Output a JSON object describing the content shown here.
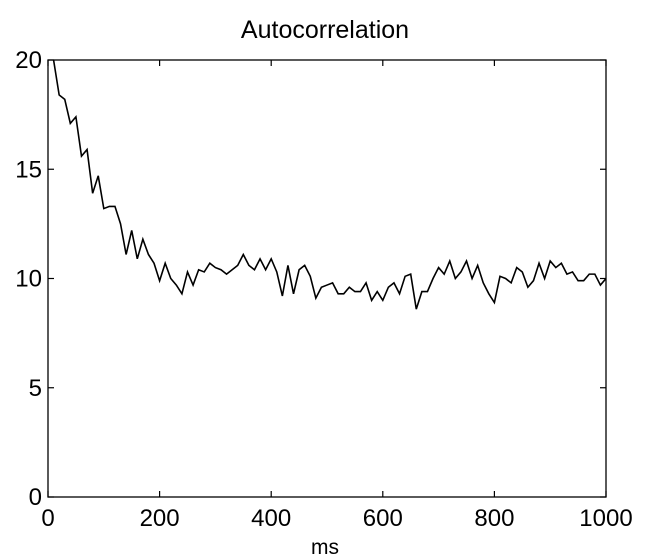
{
  "chart_data": {
    "type": "line",
    "title": "Autocorrelation",
    "xlabel": "ms",
    "ylabel": "",
    "xlim": [
      0,
      1000
    ],
    "ylim": [
      0,
      20
    ],
    "xticks": [
      0,
      200,
      400,
      600,
      800,
      1000
    ],
    "yticks": [
      0,
      5,
      10,
      15,
      20
    ],
    "xtick_labels": [
      "0",
      "200",
      "400",
      "600",
      "800",
      "1000"
    ],
    "ytick_labels": [
      "0",
      "5",
      "10",
      "15",
      "20"
    ],
    "grid": false,
    "series": [
      {
        "color": "#000000",
        "x": [
          0,
          10,
          20,
          30,
          40,
          50,
          60,
          70,
          80,
          90,
          100,
          110,
          120,
          130,
          140,
          150,
          160,
          170,
          180,
          190,
          200,
          210,
          220,
          230,
          240,
          250,
          260,
          270,
          280,
          290,
          300,
          310,
          320,
          330,
          340,
          350,
          360,
          370,
          380,
          390,
          400,
          410,
          420,
          430,
          440,
          450,
          460,
          470,
          480,
          490,
          500,
          510,
          520,
          530,
          540,
          550,
          560,
          570,
          580,
          590,
          600,
          610,
          620,
          630,
          640,
          650,
          660,
          670,
          680,
          690,
          700,
          710,
          720,
          730,
          740,
          750,
          760,
          770,
          780,
          790,
          800,
          810,
          820,
          830,
          840,
          850,
          860,
          870,
          880,
          890,
          900,
          910,
          920,
          930,
          940,
          950,
          960,
          970,
          980,
          990,
          1000
        ],
        "y": [
          21.5,
          20.0,
          18.4,
          18.2,
          17.1,
          17.4,
          15.6,
          15.9,
          13.9,
          14.7,
          13.2,
          13.3,
          13.3,
          12.5,
          11.1,
          12.2,
          10.9,
          11.8,
          11.1,
          10.7,
          9.9,
          10.7,
          10.0,
          9.7,
          9.3,
          10.3,
          9.7,
          10.4,
          10.3,
          10.7,
          10.5,
          10.4,
          10.2,
          10.4,
          10.6,
          11.1,
          10.6,
          10.4,
          10.9,
          10.4,
          10.9,
          10.3,
          9.2,
          10.6,
          9.3,
          10.4,
          10.6,
          10.1,
          9.1,
          9.6,
          9.7,
          9.8,
          9.3,
          9.3,
          9.6,
          9.4,
          9.4,
          9.8,
          9.0,
          9.4,
          9.0,
          9.6,
          9.8,
          9.3,
          10.1,
          10.2,
          8.6,
          9.4,
          9.4,
          10.0,
          10.5,
          10.2,
          10.8,
          10.0,
          10.3,
          10.8,
          10.0,
          10.6,
          9.8,
          9.3,
          8.9,
          10.1,
          10.0,
          9.8,
          10.5,
          10.3,
          9.6,
          9.9,
          10.7,
          10.0,
          10.8,
          10.5,
          10.7,
          10.2,
          10.3,
          9.9,
          9.9,
          10.2,
          10.2,
          9.7,
          10.0
        ]
      }
    ]
  }
}
